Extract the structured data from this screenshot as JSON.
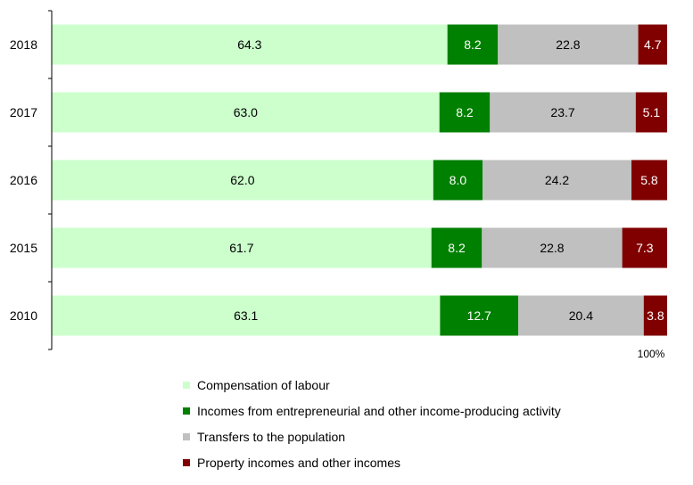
{
  "chart_data": {
    "type": "bar",
    "orientation": "horizontal",
    "stacked": "percent",
    "categories": [
      "2018",
      "2017",
      "2016",
      "2015",
      "2010"
    ],
    "series": [
      {
        "name": "Compensation of labour",
        "color": "#ccffcc",
        "label_color": "#000000",
        "values": [
          64.3,
          63.0,
          62.0,
          61.7,
          63.1
        ]
      },
      {
        "name": "Incomes from entrepreneurial and other income-producing activity",
        "color": "#008000",
        "label_color": "#ffffff",
        "values": [
          8.2,
          8.2,
          8.0,
          8.2,
          12.7
        ]
      },
      {
        "name": "Transfers to the population",
        "color": "#c0c0c0",
        "label_color": "#000000",
        "values": [
          22.8,
          23.7,
          24.2,
          22.8,
          20.4
        ]
      },
      {
        "name": "Property incomes and other incomes",
        "color": "#800000",
        "label_color": "#ffffff",
        "values": [
          4.7,
          5.1,
          5.8,
          7.3,
          3.8
        ]
      }
    ],
    "x_tick_label": "100%",
    "xlim": [
      0,
      100
    ],
    "grid": false,
    "legend_position": "bottom"
  }
}
